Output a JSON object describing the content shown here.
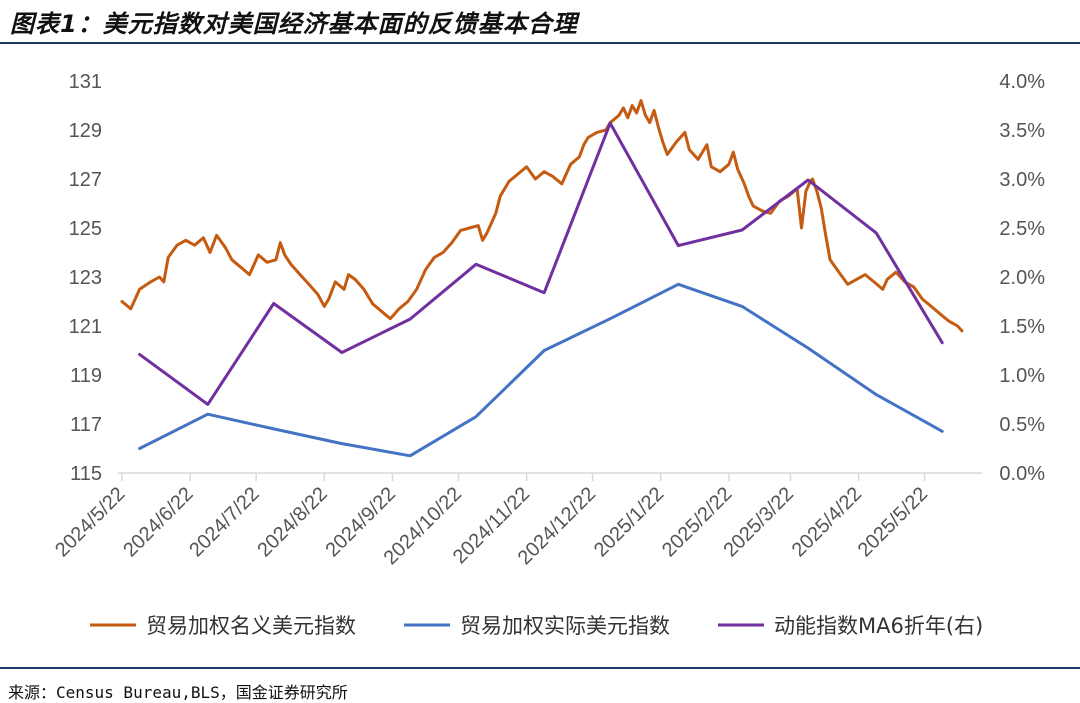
{
  "header": {
    "title": "图表1：美元指数对美国经济基本面的反馈基本合理"
  },
  "footer": {
    "source": "来源：Census Bureau,BLS，国金证券研究所"
  },
  "colors": {
    "nominal": "#C55A11",
    "real": "#4472C4",
    "momentum": "#7030A0",
    "rule": "#1F3864"
  },
  "chart_data": {
    "type": "line",
    "x_tick_labels": [
      "2024/5/22",
      "2024/6/22",
      "2024/7/22",
      "2024/8/22",
      "2024/9/22",
      "2024/10/22",
      "2024/11/22",
      "2024/12/22",
      "2025/1/22",
      "2025/2/22",
      "2025/3/22",
      "2025/4/22",
      "2025/5/22"
    ],
    "xlim": [
      "2024-05-22",
      "2025-06-08"
    ],
    "y_left": {
      "lim": [
        115,
        131
      ],
      "ticks": [
        "131",
        "129",
        "127",
        "125",
        "123",
        "121",
        "119",
        "117",
        "115"
      ]
    },
    "y_right": {
      "lim": [
        0.0,
        4.0
      ],
      "ticks": [
        "4.0%",
        "3.5%",
        "3.0%",
        "2.5%",
        "2.0%",
        "1.5%",
        "1.0%",
        "0.5%",
        "0.0%"
      ]
    },
    "legend_position": "bottom",
    "series": [
      {
        "name": "贸易加权名义美元指数",
        "axis": "left",
        "color": "#C55A11",
        "points": [
          [
            "2024-05-22",
            122.0
          ],
          [
            "2024-05-26",
            121.7
          ],
          [
            "2024-05-30",
            122.5
          ],
          [
            "2024-06-04",
            122.8
          ],
          [
            "2024-06-08",
            123.0
          ],
          [
            "2024-06-10",
            122.8
          ],
          [
            "2024-06-12",
            123.8
          ],
          [
            "2024-06-16",
            124.3
          ],
          [
            "2024-06-20",
            124.5
          ],
          [
            "2024-06-24",
            124.3
          ],
          [
            "2024-06-28",
            124.6
          ],
          [
            "2024-07-01",
            124.0
          ],
          [
            "2024-07-04",
            124.7
          ],
          [
            "2024-07-08",
            124.2
          ],
          [
            "2024-07-11",
            123.7
          ],
          [
            "2024-07-15",
            123.4
          ],
          [
            "2024-07-19",
            123.1
          ],
          [
            "2024-07-23",
            123.9
          ],
          [
            "2024-07-27",
            123.6
          ],
          [
            "2024-07-31",
            123.7
          ],
          [
            "2024-08-02",
            124.4
          ],
          [
            "2024-08-04",
            123.9
          ],
          [
            "2024-08-07",
            123.5
          ],
          [
            "2024-08-11",
            123.1
          ],
          [
            "2024-08-15",
            122.7
          ],
          [
            "2024-08-19",
            122.3
          ],
          [
            "2024-08-22",
            121.8
          ],
          [
            "2024-08-24",
            122.1
          ],
          [
            "2024-08-27",
            122.8
          ],
          [
            "2024-08-31",
            122.5
          ],
          [
            "2024-09-02",
            123.1
          ],
          [
            "2024-09-05",
            122.9
          ],
          [
            "2024-09-09",
            122.5
          ],
          [
            "2024-09-13",
            121.9
          ],
          [
            "2024-09-17",
            121.6
          ],
          [
            "2024-09-21",
            121.3
          ],
          [
            "2024-09-25",
            121.7
          ],
          [
            "2024-09-29",
            122.0
          ],
          [
            "2024-10-03",
            122.5
          ],
          [
            "2024-10-07",
            123.3
          ],
          [
            "2024-10-11",
            123.8
          ],
          [
            "2024-10-15",
            124.0
          ],
          [
            "2024-10-19",
            124.4
          ],
          [
            "2024-10-23",
            124.9
          ],
          [
            "2024-10-27",
            125.0
          ],
          [
            "2024-10-31",
            125.1
          ],
          [
            "2024-11-02",
            124.5
          ],
          [
            "2024-11-04",
            124.8
          ],
          [
            "2024-11-06",
            125.2
          ],
          [
            "2024-11-08",
            125.6
          ],
          [
            "2024-11-10",
            126.3
          ],
          [
            "2024-11-14",
            126.9
          ],
          [
            "2024-11-18",
            127.2
          ],
          [
            "2024-11-22",
            127.5
          ],
          [
            "2024-11-26",
            127.0
          ],
          [
            "2024-11-30",
            127.3
          ],
          [
            "2024-12-04",
            127.1
          ],
          [
            "2024-12-08",
            126.8
          ],
          [
            "2024-12-12",
            127.6
          ],
          [
            "2024-12-16",
            127.9
          ],
          [
            "2024-12-18",
            128.4
          ],
          [
            "2024-12-20",
            128.7
          ],
          [
            "2024-12-24",
            128.9
          ],
          [
            "2024-12-28",
            129.0
          ],
          [
            "2024-12-30",
            129.3
          ],
          [
            "2025-01-03",
            129.6
          ],
          [
            "2025-01-05",
            129.9
          ],
          [
            "2025-01-07",
            129.5
          ],
          [
            "2025-01-09",
            130.0
          ],
          [
            "2025-01-11",
            129.7
          ],
          [
            "2025-01-13",
            130.2
          ],
          [
            "2025-01-15",
            129.6
          ],
          [
            "2025-01-17",
            129.3
          ],
          [
            "2025-01-19",
            129.8
          ],
          [
            "2025-01-21",
            129.1
          ],
          [
            "2025-01-23",
            128.5
          ],
          [
            "2025-01-25",
            128.0
          ],
          [
            "2025-01-29",
            128.5
          ],
          [
            "2025-02-02",
            128.9
          ],
          [
            "2025-02-04",
            128.2
          ],
          [
            "2025-02-08",
            127.8
          ],
          [
            "2025-02-12",
            128.4
          ],
          [
            "2025-02-14",
            127.5
          ],
          [
            "2025-02-18",
            127.3
          ],
          [
            "2025-02-22",
            127.6
          ],
          [
            "2025-02-24",
            128.1
          ],
          [
            "2025-02-26",
            127.4
          ],
          [
            "2025-03-01",
            126.8
          ],
          [
            "2025-03-03",
            126.3
          ],
          [
            "2025-03-05",
            125.9
          ],
          [
            "2025-03-09",
            125.7
          ],
          [
            "2025-03-13",
            125.6
          ],
          [
            "2025-03-17",
            126.1
          ],
          [
            "2025-03-21",
            126.3
          ],
          [
            "2025-03-25",
            126.6
          ],
          [
            "2025-03-27",
            125.0
          ],
          [
            "2025-03-29",
            126.5
          ],
          [
            "2025-03-31",
            126.9
          ],
          [
            "2025-04-01",
            127.0
          ],
          [
            "2025-04-03",
            126.5
          ],
          [
            "2025-04-05",
            125.8
          ],
          [
            "2025-04-07",
            124.7
          ],
          [
            "2025-04-09",
            123.7
          ],
          [
            "2025-04-13",
            123.2
          ],
          [
            "2025-04-17",
            122.7
          ],
          [
            "2025-04-21",
            122.9
          ],
          [
            "2025-04-25",
            123.1
          ],
          [
            "2025-04-29",
            122.8
          ],
          [
            "2025-05-03",
            122.5
          ],
          [
            "2025-05-05",
            122.9
          ],
          [
            "2025-05-09",
            123.2
          ],
          [
            "2025-05-13",
            122.8
          ],
          [
            "2025-05-17",
            122.6
          ],
          [
            "2025-05-21",
            122.1
          ],
          [
            "2025-05-25",
            121.8
          ],
          [
            "2025-05-29",
            121.5
          ],
          [
            "2025-06-02",
            121.2
          ],
          [
            "2025-06-06",
            121.0
          ],
          [
            "2025-06-08",
            120.8
          ]
        ]
      },
      {
        "name": "贸易加权实际美元指数",
        "axis": "left",
        "color": "#4472C4",
        "points": [
          [
            "2024-05-30",
            116.0
          ],
          [
            "2024-06-30",
            117.4
          ],
          [
            "2024-07-30",
            116.8
          ],
          [
            "2024-08-30",
            116.2
          ],
          [
            "2024-09-30",
            115.7
          ],
          [
            "2024-10-30",
            117.3
          ],
          [
            "2024-11-30",
            120.0
          ],
          [
            "2024-12-30",
            121.3
          ],
          [
            "2025-01-30",
            122.7
          ],
          [
            "2025-02-28",
            121.8
          ],
          [
            "2025-03-30",
            120.1
          ],
          [
            "2025-04-30",
            118.2
          ],
          [
            "2025-05-30",
            116.7
          ]
        ]
      },
      {
        "name": "动能指数MA6折年(右)",
        "axis": "right",
        "color": "#7030A0",
        "points": [
          [
            "2024-05-30",
            1.21
          ],
          [
            "2024-06-30",
            0.7
          ],
          [
            "2024-07-30",
            1.73
          ],
          [
            "2024-08-30",
            1.23
          ],
          [
            "2024-09-30",
            1.57
          ],
          [
            "2024-10-30",
            2.13
          ],
          [
            "2024-11-30",
            1.84
          ],
          [
            "2024-12-30",
            3.57
          ],
          [
            "2025-01-30",
            2.32
          ],
          [
            "2025-02-28",
            2.48
          ],
          [
            "2025-03-30",
            2.99
          ],
          [
            "2025-04-30",
            2.45
          ],
          [
            "2025-05-30",
            1.33
          ]
        ]
      }
    ]
  }
}
